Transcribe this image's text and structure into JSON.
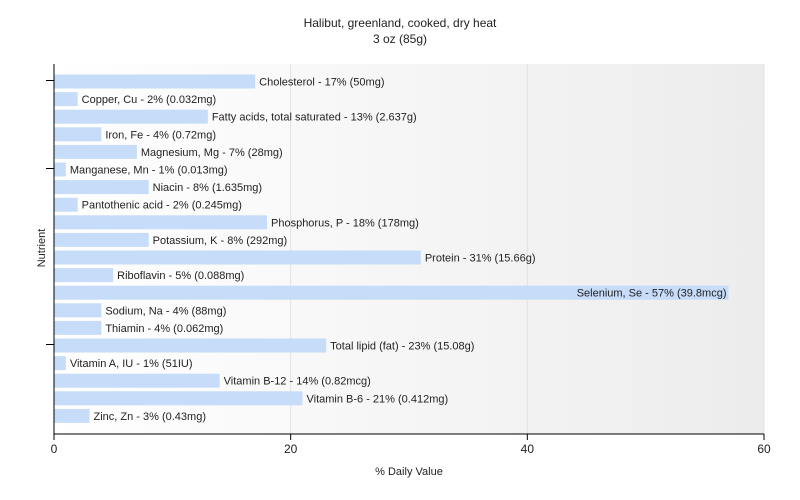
{
  "chart_data": {
    "type": "bar",
    "orientation": "horizontal",
    "title": "Halibut, greenland, cooked, dry heat",
    "subtitle": "3 oz (85g)",
    "xlabel": "% Daily Value",
    "ylabel": "Nutrient",
    "xlim": [
      0,
      60
    ],
    "xticks": [
      0,
      20,
      40,
      60
    ],
    "grid": true,
    "bar_color": "#c6dcf8",
    "categories": [
      "Cholesterol",
      "Copper, Cu",
      "Fatty acids, total saturated",
      "Iron, Fe",
      "Magnesium, Mg",
      "Manganese, Mn",
      "Niacin",
      "Pantothenic acid",
      "Phosphorus, P",
      "Potassium, K",
      "Protein",
      "Riboflavin",
      "Selenium, Se",
      "Sodium, Na",
      "Thiamin",
      "Total lipid (fat)",
      "Vitamin A, IU",
      "Vitamin B-12",
      "Vitamin B-6",
      "Zinc, Zn"
    ],
    "values": [
      17,
      2,
      13,
      4,
      7,
      1,
      8,
      2,
      18,
      8,
      31,
      5,
      57,
      4,
      4,
      23,
      1,
      14,
      21,
      3
    ],
    "labels": [
      "Cholesterol - 17% (50mg)",
      "Copper, Cu - 2% (0.032mg)",
      "Fatty acids, total saturated - 13% (2.637g)",
      "Iron, Fe - 4% (0.72mg)",
      "Magnesium, Mg - 7% (28mg)",
      "Manganese, Mn - 1% (0.013mg)",
      "Niacin - 8% (1.635mg)",
      "Pantothenic acid - 2% (0.245mg)",
      "Phosphorus, P - 18% (178mg)",
      "Potassium, K - 8% (292mg)",
      "Protein - 31% (15.66g)",
      "Riboflavin - 5% (0.088mg)",
      "Selenium, Se - 57% (39.8mcg)",
      "Sodium, Na - 4% (88mg)",
      "Thiamin - 4% (0.062mg)",
      "Total lipid (fat) - 23% (15.08g)",
      "Vitamin A, IU - 1% (51IU)",
      "Vitamin B-12 - 14% (0.82mcg)",
      "Vitamin B-6 - 21% (0.412mg)",
      "Zinc, Zn - 3% (0.43mg)"
    ]
  }
}
